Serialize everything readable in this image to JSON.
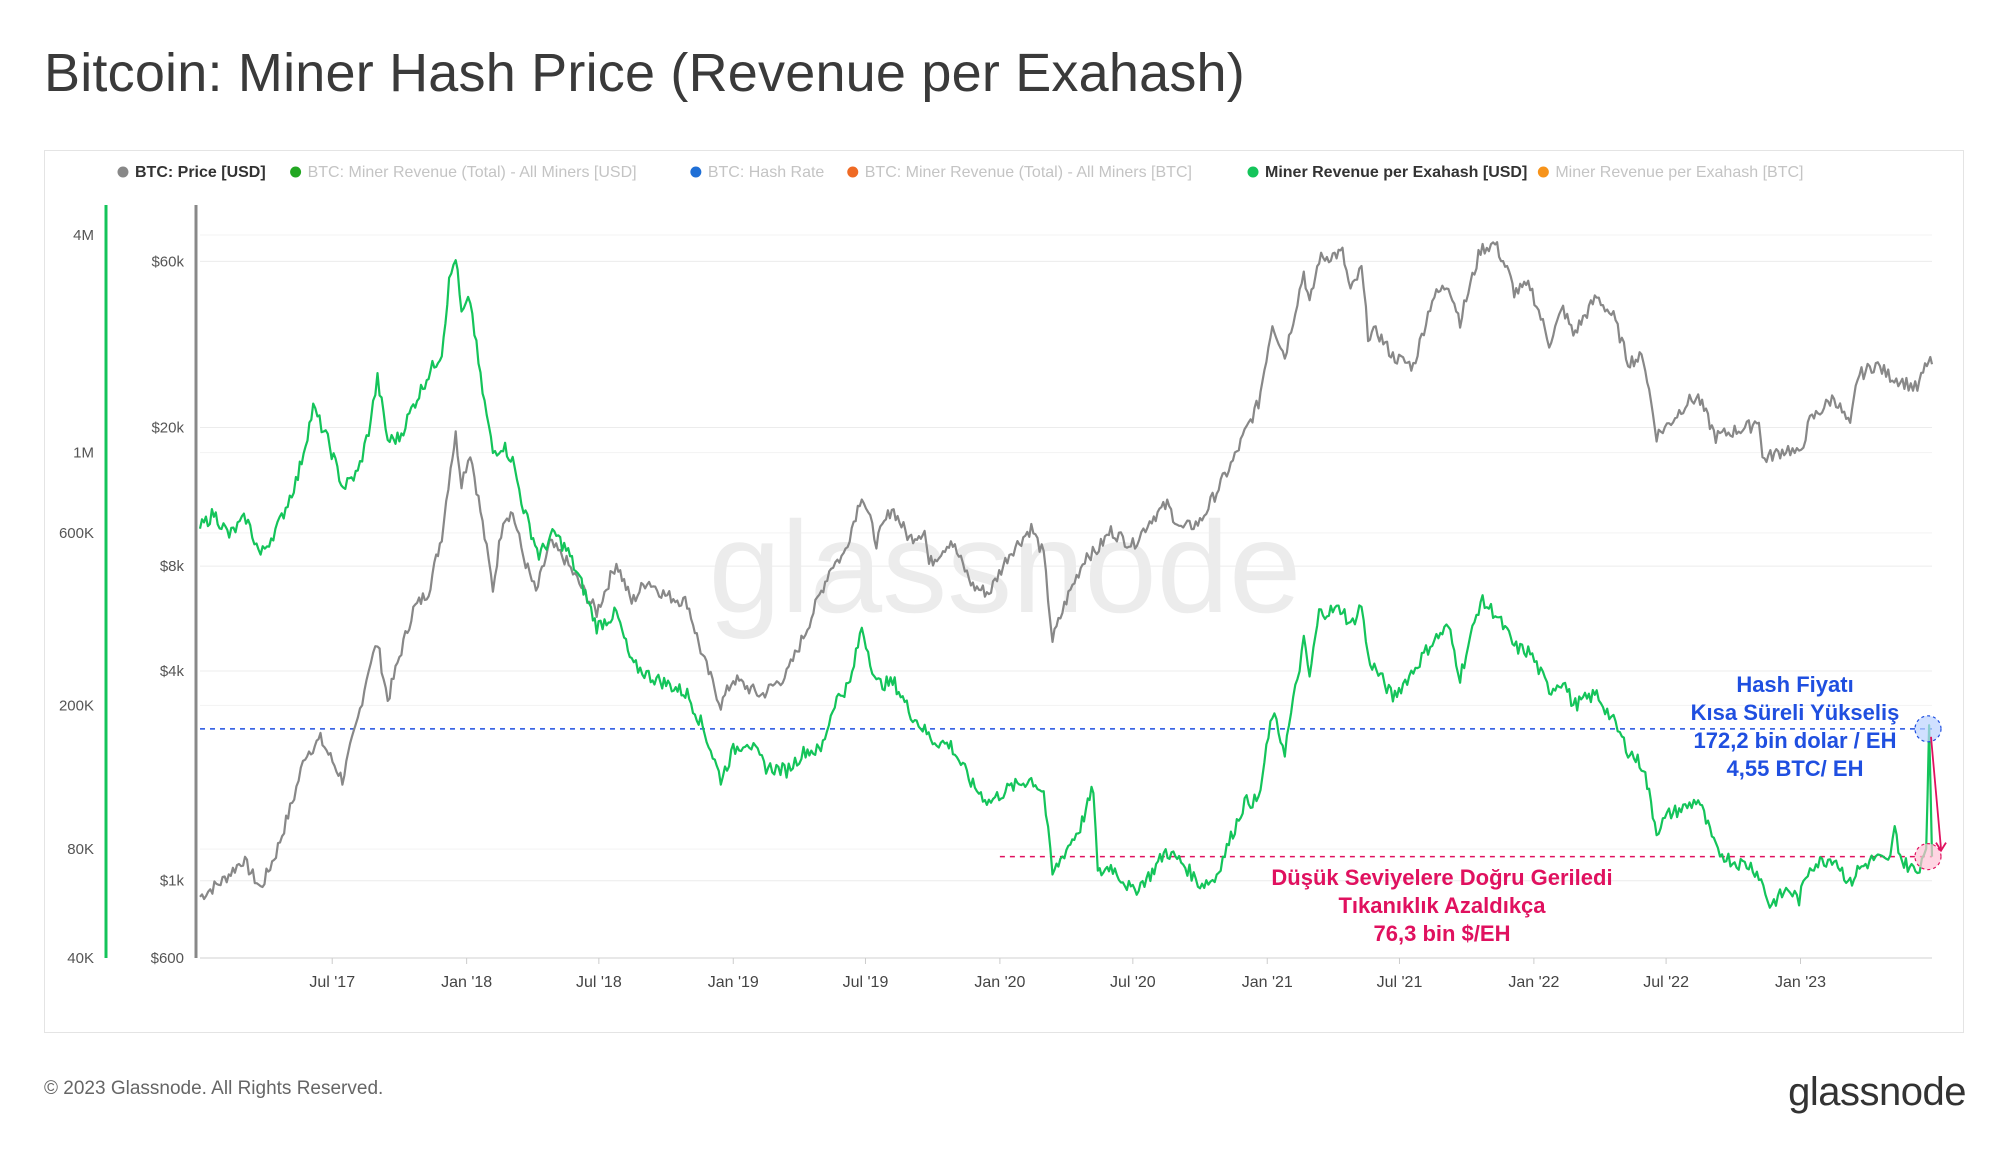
{
  "title": "Bitcoin: Miner Hash Price (Revenue per Exahash)",
  "footer": {
    "copyright": "© 2023 Glassnode. All Rights Reserved.",
    "logo": "glassnode"
  },
  "watermark": "glassnode",
  "legend": [
    {
      "label": "BTC: Price [USD]",
      "color": "#888888",
      "active": true
    },
    {
      "label": "BTC: Miner Revenue (Total) - All Miners [USD]",
      "color": "#22a722",
      "active": false
    },
    {
      "label": "BTC: Hash Rate",
      "color": "#1f6fd6",
      "active": false
    },
    {
      "label": "BTC: Miner Revenue (Total) - All Miners [BTC]",
      "color": "#ef6a24",
      "active": false
    },
    {
      "label": "Miner Revenue per Exahash [USD]",
      "color": "#14c45a",
      "active": true
    },
    {
      "label": "Miner Revenue per Exahash [BTC]",
      "color": "#f7931a",
      "active": false
    }
  ],
  "annotations": {
    "hash_price_spike": {
      "lines": [
        "Hash Fiyatı",
        "Kısa Süreli Yükseliş",
        "172,2 bin dolar / EH",
        "4,55 BTC/ EH"
      ],
      "color": "#1f4fe0",
      "value": 172200
    },
    "low_level": {
      "lines": [
        "Düşük Seviyelere Doğru Geriledi",
        "Tıkanıklık Azaldıkça",
        "76,3 bin $/EH"
      ],
      "color": "#e0115f",
      "value": 76300
    }
  },
  "chart_data": {
    "type": "line",
    "x_ticks": [
      "Jul '17",
      "Jan '18",
      "Jul '18",
      "Jan '19",
      "Jul '19",
      "Jan '20",
      "Jul '20",
      "Jan '21",
      "Jul '21",
      "Jan '22",
      "Jul '22",
      "Jan '23"
    ],
    "x_range": [
      "2017-01-01",
      "2023-06-30"
    ],
    "y_left_hashprice": {
      "scale": "log",
      "ticks": [
        "4M",
        "1M",
        "600K",
        "200K",
        "80K",
        "40K"
      ],
      "tick_values": [
        4000000,
        1000000,
        600000,
        200000,
        80000,
        40000
      ],
      "range": [
        40000,
        5000000
      ]
    },
    "y_right_price": {
      "scale": "log",
      "ticks": [
        "$60k",
        "$20k",
        "$8k",
        "$4k",
        "$1k",
        "$600"
      ],
      "tick_values": [
        60000,
        20000,
        8000,
        4000,
        1000,
        600
      ],
      "range": [
        600,
        90000
      ]
    },
    "series": [
      {
        "name": "BTC: Price [USD]",
        "axis": "price",
        "color": "#888888",
        "points": [
          [
            "2017-01-01",
            900
          ],
          [
            "2017-02-01",
            1000
          ],
          [
            "2017-03-01",
            1150
          ],
          [
            "2017-03-25",
            950
          ],
          [
            "2017-04-15",
            1200
          ],
          [
            "2017-05-10",
            1750
          ],
          [
            "2017-05-25",
            2300
          ],
          [
            "2017-06-15",
            2550
          ],
          [
            "2017-07-15",
            1950
          ],
          [
            "2017-08-05",
            2900
          ],
          [
            "2017-08-20",
            4100
          ],
          [
            "2017-09-01",
            4800
          ],
          [
            "2017-09-15",
            3300
          ],
          [
            "2017-10-01",
            4400
          ],
          [
            "2017-10-20",
            6000
          ],
          [
            "2017-11-10",
            6800
          ],
          [
            "2017-11-28",
            9800
          ],
          [
            "2017-12-10",
            15500
          ],
          [
            "2017-12-17",
            19000
          ],
          [
            "2017-12-25",
            14000
          ],
          [
            "2018-01-06",
            17000
          ],
          [
            "2018-01-20",
            11500
          ],
          [
            "2018-02-06",
            6900
          ],
          [
            "2018-02-20",
            11000
          ],
          [
            "2018-03-05",
            11400
          ],
          [
            "2018-03-20",
            8500
          ],
          [
            "2018-04-06",
            6700
          ],
          [
            "2018-04-25",
            9300
          ],
          [
            "2018-05-15",
            8400
          ],
          [
            "2018-06-10",
            6800
          ],
          [
            "2018-06-28",
            5900
          ],
          [
            "2018-07-25",
            8200
          ],
          [
            "2018-08-15",
            6300
          ],
          [
            "2018-09-05",
            7300
          ],
          [
            "2018-09-30",
            6600
          ],
          [
            "2018-10-30",
            6300
          ],
          [
            "2018-11-20",
            4400
          ],
          [
            "2018-12-15",
            3200
          ],
          [
            "2019-01-01",
            3800
          ],
          [
            "2019-02-08",
            3400
          ],
          [
            "2019-03-15",
            3900
          ],
          [
            "2019-04-10",
            5200
          ],
          [
            "2019-05-15",
            8000
          ],
          [
            "2019-06-01",
            8600
          ],
          [
            "2019-06-26",
            12900
          ],
          [
            "2019-07-16",
            9400
          ],
          [
            "2019-08-06",
            11800
          ],
          [
            "2019-08-30",
            9600
          ],
          [
            "2019-09-20",
            10100
          ],
          [
            "2019-09-26",
            8100
          ],
          [
            "2019-10-26",
            9500
          ],
          [
            "2019-11-25",
            7000
          ],
          [
            "2019-12-17",
            6700
          ],
          [
            "2020-01-14",
            8700
          ],
          [
            "2020-02-13",
            10300
          ],
          [
            "2020-03-01",
            8600
          ],
          [
            "2020-03-13",
            4900
          ],
          [
            "2020-04-01",
            6400
          ],
          [
            "2020-04-29",
            8700
          ],
          [
            "2020-05-10",
            8700
          ],
          [
            "2020-06-01",
            10100
          ],
          [
            "2020-07-01",
            9200
          ],
          [
            "2020-07-27",
            11000
          ],
          [
            "2020-08-17",
            12000
          ],
          [
            "2020-09-05",
            10200
          ],
          [
            "2020-10-01",
            10700
          ],
          [
            "2020-10-21",
            12800
          ],
          [
            "2020-11-15",
            16000
          ],
          [
            "2020-12-01",
            19200
          ],
          [
            "2020-12-20",
            23500
          ],
          [
            "2021-01-08",
            40000
          ],
          [
            "2021-01-25",
            32000
          ],
          [
            "2021-02-20",
            56000
          ],
          [
            "2021-02-28",
            45000
          ],
          [
            "2021-03-13",
            61000
          ],
          [
            "2021-04-14",
            63500
          ],
          [
            "2021-04-25",
            49000
          ],
          [
            "2021-05-10",
            57000
          ],
          [
            "2021-05-19",
            37000
          ],
          [
            "2021-06-01",
            37500
          ],
          [
            "2021-06-22",
            32000
          ],
          [
            "2021-07-20",
            30000
          ],
          [
            "2021-08-15",
            47000
          ],
          [
            "2021-09-06",
            51700
          ],
          [
            "2021-09-22",
            40500
          ],
          [
            "2021-10-20",
            65000
          ],
          [
            "2021-11-09",
            67500
          ],
          [
            "2021-11-28",
            55000
          ],
          [
            "2021-12-05",
            49000
          ],
          [
            "2021-12-27",
            51000
          ],
          [
            "2022-01-22",
            35000
          ],
          [
            "2022-02-10",
            44000
          ],
          [
            "2022-02-24",
            37000
          ],
          [
            "2022-03-28",
            47500
          ],
          [
            "2022-04-20",
            41500
          ],
          [
            "2022-05-10",
            31000
          ],
          [
            "2022-05-31",
            31800
          ],
          [
            "2022-06-18",
            19000
          ],
          [
            "2022-07-05",
            20500
          ],
          [
            "2022-07-30",
            23700
          ],
          [
            "2022-08-14",
            24400
          ],
          [
            "2022-09-07",
            18800
          ],
          [
            "2022-09-30",
            19500
          ],
          [
            "2022-10-25",
            20200
          ],
          [
            "2022-11-05",
            21300
          ],
          [
            "2022-11-10",
            16200
          ],
          [
            "2022-12-15",
            17400
          ],
          [
            "2022-12-30",
            16600
          ],
          [
            "2023-01-14",
            20900
          ],
          [
            "2023-02-16",
            24500
          ],
          [
            "2023-03-10",
            20000
          ],
          [
            "2023-03-20",
            28000
          ],
          [
            "2023-04-14",
            30400
          ],
          [
            "2023-05-01",
            28300
          ],
          [
            "2023-05-26",
            26800
          ],
          [
            "2023-06-10",
            25800
          ],
          [
            "2023-06-23",
            30700
          ],
          [
            "2023-06-30",
            30400
          ]
        ]
      },
      {
        "name": "Miner Revenue per Exahash [USD]",
        "axis": "hashprice",
        "color": "#14c45a",
        "points": [
          [
            "2017-01-01",
            620000
          ],
          [
            "2017-01-20",
            680000
          ],
          [
            "2017-02-10",
            590000
          ],
          [
            "2017-03-05",
            660000
          ],
          [
            "2017-03-25",
            520000
          ],
          [
            "2017-04-20",
            640000
          ],
          [
            "2017-05-15",
            860000
          ],
          [
            "2017-06-05",
            1330000
          ],
          [
            "2017-06-25",
            1080000
          ],
          [
            "2017-07-16",
            800000
          ],
          [
            "2017-08-05",
            880000
          ],
          [
            "2017-08-20",
            1150000
          ],
          [
            "2017-09-01",
            1600000
          ],
          [
            "2017-09-15",
            1080000
          ],
          [
            "2017-10-01",
            1100000
          ],
          [
            "2017-10-20",
            1350000
          ],
          [
            "2017-11-10",
            1650000
          ],
          [
            "2017-11-28",
            1900000
          ],
          [
            "2017-12-08",
            2950000
          ],
          [
            "2017-12-17",
            3500000
          ],
          [
            "2017-12-25",
            2400000
          ],
          [
            "2018-01-06",
            2650000
          ],
          [
            "2018-01-20",
            1600000
          ],
          [
            "2018-02-06",
            1000000
          ],
          [
            "2018-02-20",
            1050000
          ],
          [
            "2018-03-05",
            950000
          ],
          [
            "2018-03-20",
            700000
          ],
          [
            "2018-04-10",
            520000
          ],
          [
            "2018-05-01",
            600000
          ],
          [
            "2018-05-20",
            530000
          ],
          [
            "2018-06-10",
            420000
          ],
          [
            "2018-06-28",
            330000
          ],
          [
            "2018-07-25",
            360000
          ],
          [
            "2018-08-15",
            260000
          ],
          [
            "2018-09-10",
            240000
          ],
          [
            "2018-10-01",
            230000
          ],
          [
            "2018-10-30",
            215000
          ],
          [
            "2018-11-20",
            175000
          ],
          [
            "2018-12-15",
            125000
          ],
          [
            "2019-01-01",
            150000
          ],
          [
            "2019-01-20",
            160000
          ],
          [
            "2019-02-15",
            135000
          ],
          [
            "2019-03-15",
            132000
          ],
          [
            "2019-04-10",
            150000
          ],
          [
            "2019-05-01",
            150000
          ],
          [
            "2019-05-20",
            205000
          ],
          [
            "2019-06-10",
            230000
          ],
          [
            "2019-06-26",
            330000
          ],
          [
            "2019-07-16",
            230000
          ],
          [
            "2019-08-10",
            230000
          ],
          [
            "2019-09-01",
            190000
          ],
          [
            "2019-10-01",
            160000
          ],
          [
            "2019-10-26",
            155000
          ],
          [
            "2019-11-25",
            120000
          ],
          [
            "2019-12-17",
            108000
          ],
          [
            "2020-01-14",
            118000
          ],
          [
            "2020-02-13",
            125000
          ],
          [
            "2020-03-01",
            115000
          ],
          [
            "2020-03-13",
            68000
          ],
          [
            "2020-04-01",
            80000
          ],
          [
            "2020-04-20",
            92000
          ],
          [
            "2020-05-08",
            118000
          ],
          [
            "2020-05-14",
            68000
          ],
          [
            "2020-06-01",
            72000
          ],
          [
            "2020-07-01",
            61000
          ],
          [
            "2020-07-25",
            68000
          ],
          [
            "2020-08-15",
            79000
          ],
          [
            "2020-09-05",
            74000
          ],
          [
            "2020-10-01",
            64000
          ],
          [
            "2020-10-21",
            66000
          ],
          [
            "2020-11-15",
            89000
          ],
          [
            "2020-12-01",
            108000
          ],
          [
            "2020-12-20",
            109000
          ],
          [
            "2021-01-08",
            190000
          ],
          [
            "2021-01-25",
            150000
          ],
          [
            "2021-02-20",
            300000
          ],
          [
            "2021-02-28",
            240000
          ],
          [
            "2021-03-13",
            360000
          ],
          [
            "2021-04-14",
            370000
          ],
          [
            "2021-04-25",
            330000
          ],
          [
            "2021-05-10",
            380000
          ],
          [
            "2021-05-19",
            270000
          ],
          [
            "2021-06-05",
            240000
          ],
          [
            "2021-06-22",
            210000
          ],
          [
            "2021-07-20",
            250000
          ],
          [
            "2021-08-15",
            300000
          ],
          [
            "2021-09-06",
            330000
          ],
          [
            "2021-09-22",
            240000
          ],
          [
            "2021-10-20",
            390000
          ],
          [
            "2021-11-09",
            360000
          ],
          [
            "2021-11-28",
            310000
          ],
          [
            "2021-12-05",
            290000
          ],
          [
            "2021-12-27",
            280000
          ],
          [
            "2022-01-22",
            220000
          ],
          [
            "2022-02-10",
            235000
          ],
          [
            "2022-02-24",
            200000
          ],
          [
            "2022-03-28",
            215000
          ],
          [
            "2022-04-20",
            180000
          ],
          [
            "2022-05-10",
            150000
          ],
          [
            "2022-05-31",
            135000
          ],
          [
            "2022-06-18",
            90000
          ],
          [
            "2022-07-05",
            100000
          ],
          [
            "2022-07-30",
            105000
          ],
          [
            "2022-08-14",
            110000
          ],
          [
            "2022-09-07",
            80000
          ],
          [
            "2022-09-30",
            74000
          ],
          [
            "2022-10-25",
            72000
          ],
          [
            "2022-11-05",
            68000
          ],
          [
            "2022-11-20",
            56000
          ],
          [
            "2022-12-15",
            62000
          ],
          [
            "2022-12-30",
            58000
          ],
          [
            "2023-01-14",
            72000
          ],
          [
            "2023-02-16",
            76000
          ],
          [
            "2023-03-10",
            64000
          ],
          [
            "2023-03-20",
            70000
          ],
          [
            "2023-04-14",
            76000
          ],
          [
            "2023-05-01",
            73000
          ],
          [
            "2023-05-10",
            90000
          ],
          [
            "2023-05-20",
            74000
          ],
          [
            "2023-06-10",
            69000
          ],
          [
            "2023-06-22",
            82000
          ],
          [
            "2023-06-26",
            172200
          ],
          [
            "2023-06-30",
            76300
          ]
        ]
      }
    ],
    "reference_lines": [
      {
        "value": 172200,
        "axis": "hashprice",
        "color": "#1f4fe0",
        "style": "dashed"
      },
      {
        "value": 76300,
        "axis": "hashprice",
        "color": "#e0115f",
        "style": "dashed"
      }
    ],
    "grid": true,
    "legend_position": "top"
  }
}
